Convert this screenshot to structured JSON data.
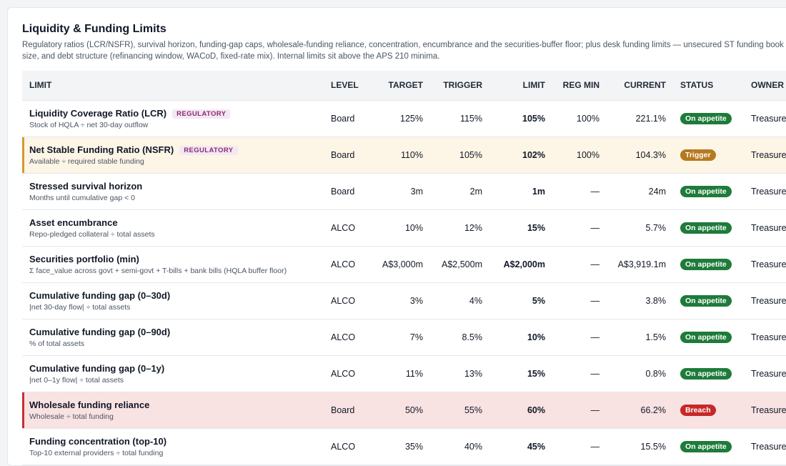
{
  "page": {
    "title": "Liquidity & Funding Limits",
    "subtitle": "Regulatory ratios (LCR/NSFR), survival horizon, funding-gap caps, wholesale-funding reliance, concentration, encumbrance and the securities-buffer floor; plus desk funding limits — unsecured ST funding book size, and debt structure (refinancing window, WACoD, fixed-rate mix). Internal limits sit above the APS 210 minima."
  },
  "table": {
    "columns": {
      "limit": "LIMIT",
      "level": "LEVEL",
      "target": "TARGET",
      "trigger": "TRIGGER",
      "limit_value": "LIMIT",
      "reg_min": "REG MIN",
      "current": "CURRENT",
      "status": "STATUS",
      "owner": "OWNER"
    },
    "rows": [
      {
        "name": "Liquidity Coverage Ratio (LCR)",
        "tag": "REGULATORY",
        "desc": "Stock of HQLA ÷ net 30-day outflow",
        "level": "Board",
        "target": "125%",
        "trigger": "115%",
        "limit": "105%",
        "reg_min": "100%",
        "current": "221.1%",
        "status": "On appetite",
        "status_kind": "ok",
        "owner": "Treasurer / CFO"
      },
      {
        "name": "Net Stable Funding Ratio (NSFR)",
        "tag": "REGULATORY",
        "desc": "Available ÷ required stable funding",
        "level": "Board",
        "target": "110%",
        "trigger": "105%",
        "limit": "102%",
        "reg_min": "100%",
        "current": "104.3%",
        "status": "Trigger",
        "status_kind": "trigger",
        "owner": "Treasurer / CFO"
      },
      {
        "name": "Stressed survival horizon",
        "tag": "",
        "desc": "Months until cumulative gap < 0",
        "level": "Board",
        "target": "3m",
        "trigger": "2m",
        "limit": "1m",
        "reg_min": "—",
        "current": "24m",
        "status": "On appetite",
        "status_kind": "ok",
        "owner": "Treasurer"
      },
      {
        "name": "Asset encumbrance",
        "tag": "",
        "desc": "Repo-pledged collateral ÷ total assets",
        "level": "ALCO",
        "target": "10%",
        "trigger": "12%",
        "limit": "15%",
        "reg_min": "—",
        "current": "5.7%",
        "status": "On appetite",
        "status_kind": "ok",
        "owner": "Treasurer"
      },
      {
        "name": "Securities portfolio (min)",
        "tag": "",
        "desc": "Σ face_value across govt + semi-govt + T-bills + bank bills (HQLA buffer floor)",
        "level": "ALCO",
        "target": "A$3,000m",
        "trigger": "A$2,500m",
        "limit": "A$2,000m",
        "reg_min": "—",
        "current": "A$3,919.1m",
        "status": "On appetite",
        "status_kind": "ok",
        "owner": "Treasurer"
      },
      {
        "name": "Cumulative funding gap (0–30d)",
        "tag": "",
        "desc": "|net 30-day flow| ÷ total assets",
        "level": "ALCO",
        "target": "3%",
        "trigger": "4%",
        "limit": "5%",
        "reg_min": "—",
        "current": "3.8%",
        "status": "On appetite",
        "status_kind": "ok",
        "owner": "Treasurer"
      },
      {
        "name": "Cumulative funding gap (0–90d)",
        "tag": "",
        "desc": "% of total assets",
        "level": "ALCO",
        "target": "7%",
        "trigger": "8.5%",
        "limit": "10%",
        "reg_min": "—",
        "current": "1.5%",
        "status": "On appetite",
        "status_kind": "ok",
        "owner": "Treasurer"
      },
      {
        "name": "Cumulative funding gap (0–1y)",
        "tag": "",
        "desc": "|net 0–1y flow| ÷ total assets",
        "level": "ALCO",
        "target": "11%",
        "trigger": "13%",
        "limit": "15%",
        "reg_min": "—",
        "current": "0.8%",
        "status": "On appetite",
        "status_kind": "ok",
        "owner": "Treasurer"
      },
      {
        "name": "Wholesale funding reliance",
        "tag": "",
        "desc": "Wholesale ÷ total funding",
        "level": "Board",
        "target": "50%",
        "trigger": "55%",
        "limit": "60%",
        "reg_min": "—",
        "current": "66.2%",
        "status": "Breach",
        "status_kind": "breach",
        "owner": "Treasurer / CFO"
      },
      {
        "name": "Funding concentration (top-10)",
        "tag": "",
        "desc": "Top-10 external providers ÷ total funding",
        "level": "ALCO",
        "target": "35%",
        "trigger": "40%",
        "limit": "45%",
        "reg_min": "—",
        "current": "15.5%",
        "status": "On appetite",
        "status_kind": "ok",
        "owner": "Treasurer"
      }
    ]
  }
}
